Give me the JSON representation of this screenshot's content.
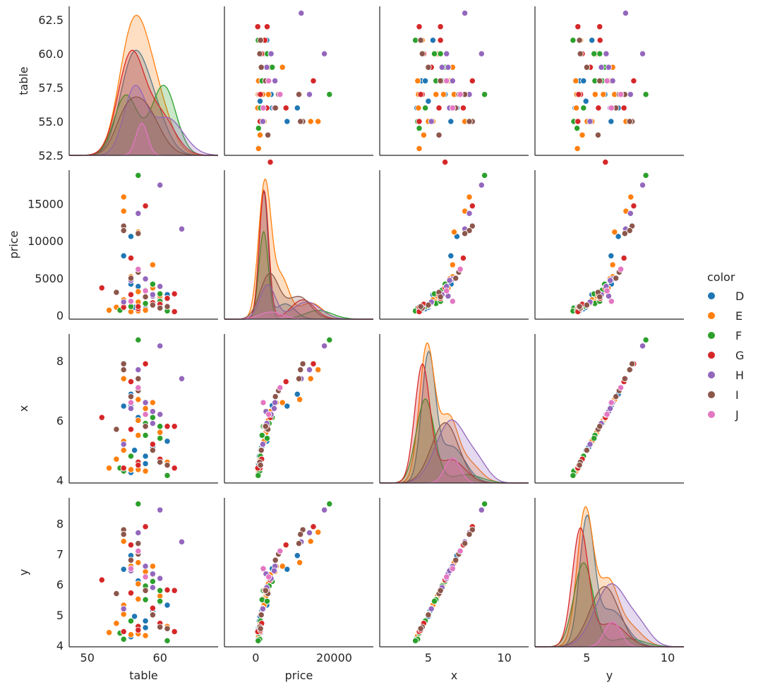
{
  "chart_data": {
    "type": "scatter",
    "subtype": "pairplot",
    "variables": [
      "table",
      "price",
      "x",
      "y"
    ],
    "diag_kind": "kde",
    "legend": {
      "title": "color",
      "placement": "right",
      "labels": [
        "D",
        "E",
        "F",
        "G",
        "H",
        "I",
        "J"
      ],
      "colors": [
        "#1f77b4",
        "#ff7f0e",
        "#2ca02c",
        "#d62728",
        "#9467bd",
        "#8c564b",
        "#e377c2"
      ]
    },
    "axes": {
      "table": {
        "label": "table",
        "range": [
          47.5,
          68.0
        ],
        "ticks": [
          50,
          60
        ],
        "tick_labels": [
          "50",
          "60"
        ],
        "row_range": [
          52.5,
          63.5
        ],
        "row_ticks": [
          52.5,
          55.0,
          57.5,
          60.0,
          62.5
        ],
        "row_tick_labels": [
          "52.5",
          "55.0",
          "57.5",
          "60.0",
          "62.5"
        ]
      },
      "price": {
        "label": "price",
        "range": [
          -8000,
          30000
        ],
        "ticks": [
          0,
          20000
        ],
        "tick_labels": [
          "0",
          "20000"
        ],
        "row_range": [
          -500,
          19500
        ],
        "row_ticks": [
          0,
          5000,
          10000,
          15000
        ],
        "row_tick_labels": [
          "0",
          "5000",
          "10000",
          "15000"
        ]
      },
      "x": {
        "label": "x",
        "range": [
          1.8,
          11.6
        ],
        "ticks": [
          5,
          10
        ],
        "tick_labels": [
          "5",
          "10"
        ],
        "row_range": [
          3.9,
          8.9
        ],
        "row_ticks": [
          4,
          6,
          8
        ],
        "row_tick_labels": [
          "4",
          "6",
          "8"
        ]
      },
      "y": {
        "label": "y",
        "range": [
          1.8,
          11.0
        ],
        "ticks": [
          5,
          10
        ],
        "tick_labels": [
          "5",
          "10"
        ],
        "row_range": [
          3.95,
          8.85
        ],
        "row_ticks": [
          4,
          5,
          6,
          7,
          8
        ],
        "row_tick_labels": [
          "4",
          "5",
          "6",
          "7",
          "8"
        ]
      }
    },
    "kde_components": {
      "table": {
        "D": [
          [
            56.2,
            1.8,
            0.8
          ],
          [
            59.0,
            1.9,
            0.4
          ]
        ],
        "E": [
          [
            57.0,
            1.9,
            1.0
          ],
          [
            55.2,
            1.6,
            0.35
          ],
          [
            60.0,
            1.8,
            0.35
          ]
        ],
        "F": [
          [
            55.3,
            1.6,
            0.6
          ],
          [
            60.5,
            1.7,
            0.7
          ]
        ],
        "G": [
          [
            56.0,
            1.8,
            1.0
          ],
          [
            60.0,
            2.0,
            0.4
          ]
        ],
        "H": [
          [
            56.5,
            1.5,
            0.7
          ],
          [
            61.0,
            2.2,
            0.4
          ]
        ],
        "I": [
          [
            57.5,
            2.2,
            0.7
          ],
          [
            55.0,
            1.4,
            0.25
          ]
        ],
        "J": [
          [
            57.5,
            0.8,
            0.8
          ]
        ]
      },
      "price": {
        "D": [
          [
            2000,
            1100,
            1.0
          ],
          [
            7500,
            2500,
            0.12
          ]
        ],
        "E": [
          [
            2300,
            1600,
            1.0
          ],
          [
            6500,
            2000,
            0.3
          ],
          [
            14000,
            3000,
            0.12
          ]
        ],
        "F": [
          [
            2000,
            1200,
            0.8
          ],
          [
            16000,
            3500,
            0.08
          ]
        ],
        "G": [
          [
            2100,
            1200,
            1.0
          ],
          [
            12000,
            3000,
            0.15
          ]
        ],
        "H": [
          [
            3000,
            2000,
            0.6
          ],
          [
            13000,
            3500,
            0.3
          ]
        ],
        "I": [
          [
            3500,
            2400,
            0.5
          ],
          [
            11000,
            3000,
            0.25
          ]
        ],
        "J": [
          [
            4000,
            3000,
            0.25
          ]
        ]
      },
      "x": {
        "D": [
          [
            5.0,
            0.45,
            1.0
          ],
          [
            6.5,
            0.9,
            0.3
          ]
        ],
        "E": [
          [
            4.9,
            0.5,
            1.0
          ],
          [
            6.3,
            0.6,
            0.45
          ],
          [
            7.6,
            0.8,
            0.15
          ]
        ],
        "F": [
          [
            4.8,
            0.6,
            1.0
          ],
          [
            7.5,
            1.0,
            0.1
          ]
        ],
        "G": [
          [
            4.6,
            0.5,
            1.0
          ],
          [
            6.5,
            0.9,
            0.2
          ]
        ],
        "H": [
          [
            6.5,
            1.0,
            0.8
          ],
          [
            8.3,
            0.7,
            0.2
          ]
        ],
        "I": [
          [
            6.1,
            0.9,
            0.8
          ]
        ],
        "J": [
          [
            6.6,
            0.5,
            0.4
          ]
        ]
      },
      "y": {
        "D": [
          [
            5.0,
            0.45,
            1.0
          ],
          [
            6.5,
            0.9,
            0.3
          ]
        ],
        "E": [
          [
            4.9,
            0.5,
            1.0
          ],
          [
            6.3,
            0.6,
            0.45
          ],
          [
            7.6,
            0.8,
            0.15
          ]
        ],
        "F": [
          [
            4.8,
            0.6,
            1.0
          ],
          [
            7.5,
            1.0,
            0.1
          ]
        ],
        "G": [
          [
            4.6,
            0.5,
            1.0
          ],
          [
            6.5,
            0.9,
            0.2
          ]
        ],
        "H": [
          [
            6.5,
            1.0,
            0.8
          ],
          [
            8.3,
            0.7,
            0.2
          ]
        ],
        "I": [
          [
            6.1,
            0.9,
            0.8
          ]
        ],
        "J": [
          [
            6.6,
            0.5,
            0.4
          ]
        ]
      }
    },
    "kde_peak_density": {
      "table": {
        "D": 0.36,
        "E": 0.48,
        "F": 0.24,
        "G": 0.36,
        "H": 0.24,
        "I": 0.2,
        "J": 0.11
      },
      "price": {
        "D": 0.000216,
        "E": 0.000235,
        "F": 0.000147,
        "G": 0.000216,
        "H": 5.8e-05,
        "I": 7.7e-05,
        "J": 1.2e-05
      },
      "x": {
        "D": 0.94,
        "E": 1.0,
        "F": 0.6,
        "G": 0.85,
        "H": 0.45,
        "I": 0.43,
        "J": 0.18
      },
      "y": {
        "D": 0.94,
        "E": 1.0,
        "F": 0.6,
        "G": 0.85,
        "H": 0.45,
        "I": 0.43,
        "J": 0.18
      }
    },
    "points": [
      {
        "c": "D",
        "table": 57.0,
        "price": 3900,
        "x": 6.1,
        "y": 6.12
      },
      {
        "c": "D",
        "table": 56.0,
        "price": 10600,
        "x": 6.88,
        "y": 6.95
      },
      {
        "c": "D",
        "table": 55.0,
        "price": 8000,
        "x": 6.48,
        "y": 6.5
      },
      {
        "c": "D",
        "table": 58.0,
        "price": 700,
        "x": 4.55,
        "y": 4.58
      },
      {
        "c": "D",
        "table": 59.0,
        "price": 1500,
        "x": 5.1,
        "y": 5.12
      },
      {
        "c": "D",
        "table": 60.0,
        "price": 2300,
        "x": 5.4,
        "y": 5.42
      },
      {
        "c": "D",
        "table": 56.0,
        "price": 4200,
        "x": 6.5,
        "y": 6.52
      },
      {
        "c": "D",
        "table": 58.0,
        "price": 900,
        "x": 4.8,
        "y": 4.8
      },
      {
        "c": "D",
        "table": 57.0,
        "price": 1200,
        "x": 4.4,
        "y": 4.42
      },
      {
        "c": "D",
        "table": 61.0,
        "price": 2800,
        "x": 5.3,
        "y": 5.32
      },
      {
        "c": "D",
        "table": 56.0,
        "price": 600,
        "x": 4.25,
        "y": 4.28
      },
      {
        "c": "D",
        "table": 56.5,
        "price": 1100,
        "x": 5.0,
        "y": 4.95
      },
      {
        "c": "E",
        "table": 53.0,
        "price": 700,
        "x": 4.4,
        "y": 4.42
      },
      {
        "c": "E",
        "table": 54.0,
        "price": 1100,
        "x": 4.7,
        "y": 4.72
      },
      {
        "c": "E",
        "table": 55.0,
        "price": 1400,
        "x": 5.0,
        "y": 5.02
      },
      {
        "c": "E",
        "table": 55.0,
        "price": 2100,
        "x": 5.3,
        "y": 5.32
      },
      {
        "c": "E",
        "table": 55.0,
        "price": 15900,
        "x": 7.7,
        "y": 7.72
      },
      {
        "c": "E",
        "table": 55.0,
        "price": 14000,
        "x": 7.4,
        "y": 7.42
      },
      {
        "c": "E",
        "table": 56.0,
        "price": 5200,
        "x": 6.6,
        "y": 6.6
      },
      {
        "c": "E",
        "table": 56.0,
        "price": 500,
        "x": 4.35,
        "y": 4.35
      },
      {
        "c": "E",
        "table": 57.0,
        "price": 3200,
        "x": 6.0,
        "y": 6.02
      },
      {
        "c": "E",
        "table": 57.0,
        "price": 600,
        "x": 4.35,
        "y": 4.38
      },
      {
        "c": "E",
        "table": 57.0,
        "price": 11200,
        "x": 6.7,
        "y": 6.72
      },
      {
        "c": "E",
        "table": 58.0,
        "price": 2400,
        "x": 5.8,
        "y": 5.82
      },
      {
        "c": "E",
        "table": 58.0,
        "price": 700,
        "x": 4.3,
        "y": 4.32
      },
      {
        "c": "E",
        "table": 59.0,
        "price": 6800,
        "x": 6.6,
        "y": 6.6
      },
      {
        "c": "E",
        "table": 59.0,
        "price": 1300,
        "x": 5.0,
        "y": 5.02
      },
      {
        "c": "E",
        "table": 59.0,
        "price": 3700,
        "x": 6.3,
        "y": 6.32
      },
      {
        "c": "E",
        "table": 60.0,
        "price": 2600,
        "x": 5.6,
        "y": 5.62
      },
      {
        "c": "E",
        "table": 61.0,
        "price": 1000,
        "x": 4.6,
        "y": 4.62
      },
      {
        "c": "E",
        "table": 58.0,
        "price": 4900,
        "x": 6.4,
        "y": 6.42
      },
      {
        "c": "E",
        "table": 57.0,
        "price": 1800,
        "x": 5.5,
        "y": 5.52
      },
      {
        "c": "F",
        "table": 55.0,
        "price": 1000,
        "x": 4.3,
        "y": 4.2
      },
      {
        "c": "F",
        "table": 57.0,
        "price": 18800,
        "x": 8.7,
        "y": 8.65
      },
      {
        "c": "F",
        "table": 58.0,
        "price": 1600,
        "x": 5.5,
        "y": 5.5
      },
      {
        "c": "F",
        "table": 59.0,
        "price": 4200,
        "x": 6.1,
        "y": 6.1
      },
      {
        "c": "F",
        "table": 60.0,
        "price": 1900,
        "x": 5.8,
        "y": 5.8
      },
      {
        "c": "F",
        "table": 61.0,
        "price": 600,
        "x": 4.15,
        "y": 4.15
      },
      {
        "c": "F",
        "table": 56.0,
        "price": 1200,
        "x": 4.8,
        "y": 4.8
      },
      {
        "c": "F",
        "table": 54.5,
        "price": 700,
        "x": 4.4,
        "y": 4.4
      },
      {
        "c": "F",
        "table": 60.0,
        "price": 2900,
        "x": 5.4,
        "y": 5.45
      },
      {
        "c": "F",
        "table": 58.0,
        "price": 3400,
        "x": 5.9,
        "y": 5.95
      },
      {
        "c": "G",
        "table": 52.0,
        "price": 3700,
        "x": 6.1,
        "y": 6.15
      },
      {
        "c": "G",
        "table": 55.0,
        "price": 1100,
        "x": 4.4,
        "y": 4.45
      },
      {
        "c": "G",
        "table": 56.0,
        "price": 7700,
        "x": 7.3,
        "y": 7.3
      },
      {
        "c": "G",
        "table": 56.0,
        "price": 2800,
        "x": 5.7,
        "y": 5.72
      },
      {
        "c": "G",
        "table": 57.0,
        "price": 900,
        "x": 4.6,
        "y": 4.62
      },
      {
        "c": "G",
        "table": 58.0,
        "price": 14700,
        "x": 7.9,
        "y": 7.9
      },
      {
        "c": "G",
        "table": 59.0,
        "price": 1700,
        "x": 5.2,
        "y": 5.22
      },
      {
        "c": "G",
        "table": 60.0,
        "price": 1500,
        "x": 4.7,
        "y": 4.72
      },
      {
        "c": "G",
        "table": 61.0,
        "price": 2300,
        "x": 5.8,
        "y": 5.82
      },
      {
        "c": "G",
        "table": 62.0,
        "price": 2900,
        "x": 5.8,
        "y": 5.8
      },
      {
        "c": "G",
        "table": 62.0,
        "price": 500,
        "x": 4.4,
        "y": 4.45
      },
      {
        "c": "G",
        "table": 57.0,
        "price": 1200,
        "x": 4.5,
        "y": 4.5
      },
      {
        "c": "H",
        "table": 63.0,
        "price": 11600,
        "x": 7.4,
        "y": 7.4
      },
      {
        "c": "H",
        "table": 60.0,
        "price": 17500,
        "x": 8.5,
        "y": 8.45
      },
      {
        "c": "H",
        "table": 57.0,
        "price": 13700,
        "x": 7.7,
        "y": 7.7
      },
      {
        "c": "H",
        "table": 59.0,
        "price": 2600,
        "x": 6.3,
        "y": 6.35
      },
      {
        "c": "H",
        "table": 58.0,
        "price": 4900,
        "x": 6.6,
        "y": 6.6
      },
      {
        "c": "H",
        "table": 56.0,
        "price": 4700,
        "x": 6.4,
        "y": 6.45
      },
      {
        "c": "H",
        "table": 60.0,
        "price": 3900,
        "x": 6.2,
        "y": 6.2
      },
      {
        "c": "H",
        "table": 55.0,
        "price": 1800,
        "x": 5.2,
        "y": 5.2
      },
      {
        "c": "H",
        "table": 59.0,
        "price": 2800,
        "x": 5.9,
        "y": 5.9
      },
      {
        "c": "I",
        "table": 55.0,
        "price": 12000,
        "x": 7.9,
        "y": 7.8
      },
      {
        "c": "I",
        "table": 55.0,
        "price": 11400,
        "x": 7.7,
        "y": 7.65
      },
      {
        "c": "I",
        "table": 54.0,
        "price": 3100,
        "x": 5.7,
        "y": 5.7
      },
      {
        "c": "I",
        "table": 57.0,
        "price": 11000,
        "x": 7.4,
        "y": 7.35
      },
      {
        "c": "I",
        "table": 56.0,
        "price": 5000,
        "x": 6.8,
        "y": 6.8
      },
      {
        "c": "I",
        "table": 57.0,
        "price": 5800,
        "x": 7.0,
        "y": 7.0
      },
      {
        "c": "I",
        "table": 59.0,
        "price": 1400,
        "x": 5.0,
        "y": 5.0
      },
      {
        "c": "I",
        "table": 60.0,
        "price": 1000,
        "x": 4.6,
        "y": 4.6
      },
      {
        "c": "I",
        "table": 58.0,
        "price": 2500,
        "x": 5.8,
        "y": 5.8
      },
      {
        "c": "I",
        "table": 61.0,
        "price": 1200,
        "x": 4.5,
        "y": 4.55
      },
      {
        "c": "J",
        "table": 57.0,
        "price": 6200,
        "x": 7.1,
        "y": 7.1
      },
      {
        "c": "J",
        "table": 56.0,
        "price": 1900,
        "x": 6.6,
        "y": 6.52
      },
      {
        "c": "J",
        "table": 58.0,
        "price": 3300,
        "x": 6.2,
        "y": 6.25
      }
    ]
  }
}
